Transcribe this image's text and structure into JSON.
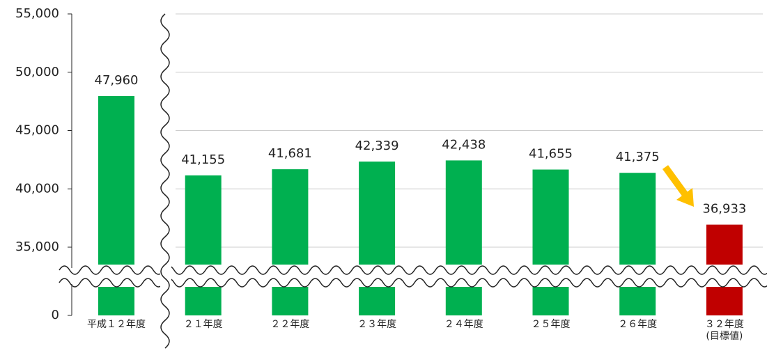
{
  "chart_data": {
    "type": "bar",
    "categories": [
      "平成１２年度",
      "２１年度",
      "２２年度",
      "２３年度",
      "２４年度",
      "２５年度",
      "２６年度",
      "３２年度\n(目標値)"
    ],
    "series": [
      {
        "colors": [
          "#00b050",
          "#00b050",
          "#00b050",
          "#00b050",
          "#00b050",
          "#00b050",
          "#00b050",
          "#c00000"
        ],
        "values": [
          47960,
          41155,
          41681,
          42339,
          42438,
          41655,
          41375,
          36933
        ],
        "value_labels": [
          "47,960",
          "41,155",
          "41,681",
          "42,339",
          "42,438",
          "41,655",
          "41,375",
          "36,933"
        ]
      }
    ],
    "ylim": [
      0,
      55000
    ],
    "yticks": [
      0,
      {
        "value": 35000,
        "label": "35,000"
      },
      {
        "value": 40000,
        "label": "40,000"
      },
      {
        "value": 45000,
        "label": "45,000"
      },
      {
        "value": 50000,
        "label": "50,000"
      },
      {
        "value": 55000,
        "label": "55,000"
      }
    ],
    "grid": true
  }
}
